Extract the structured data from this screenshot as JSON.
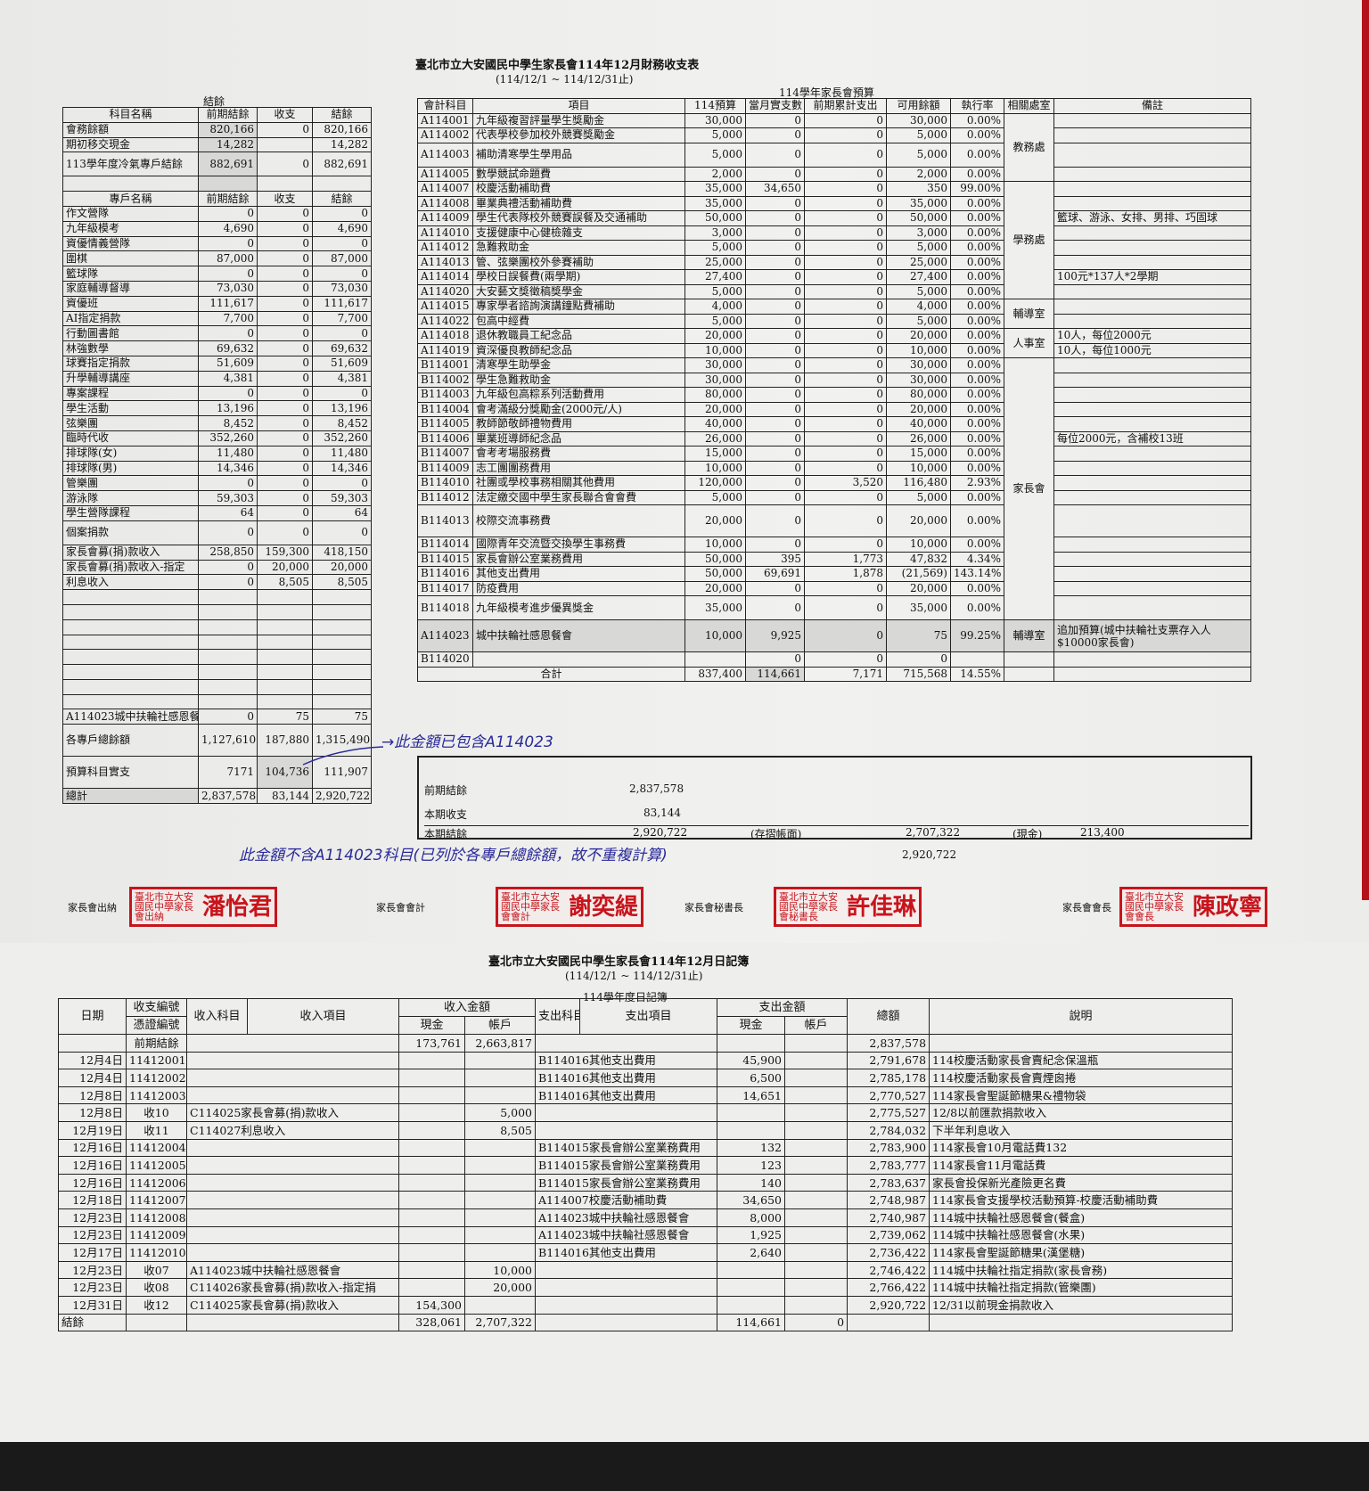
{
  "report": {
    "title": "臺北市立大安國民中學生家長會114年12月財務收支表",
    "period": "(114/12/1 ~ 114/12/31止)"
  },
  "left": {
    "caption": "結餘",
    "header1": [
      "科目名稱",
      "前期結餘",
      "收支",
      "結餘"
    ],
    "rows1": [
      [
        "會務餘額",
        "820,166",
        "0",
        "820,166"
      ],
      [
        "期初移交現金",
        "14,282",
        "",
        "14,282"
      ],
      [
        "113學年度冷氣專戶結餘",
        "882,691",
        "0",
        "882,691"
      ],
      [
        "",
        "",
        "",
        ""
      ]
    ],
    "header2": [
      "專戶名稱",
      "前期結餘",
      "收支",
      "結餘"
    ],
    "rows2": [
      [
        "作文營隊",
        "0",
        "0",
        "0"
      ],
      [
        "九年級模考",
        "4,690",
        "0",
        "4,690"
      ],
      [
        "資優情義營隊",
        "0",
        "0",
        "0"
      ],
      [
        "圍棋",
        "87,000",
        "0",
        "87,000"
      ],
      [
        "籃球隊",
        "0",
        "0",
        "0"
      ],
      [
        "家庭輔導督導",
        "73,030",
        "0",
        "73,030"
      ],
      [
        "資優班",
        "111,617",
        "0",
        "111,617"
      ],
      [
        "AI指定捐款",
        "7,700",
        "0",
        "7,700"
      ],
      [
        "行動圖書館",
        "0",
        "0",
        "0"
      ],
      [
        "林強數學",
        "69,632",
        "0",
        "69,632"
      ],
      [
        "球賽指定捐款",
        "51,609",
        "0",
        "51,609"
      ],
      [
        "升學輔導講座",
        "4,381",
        "0",
        "4,381"
      ],
      [
        "專案課程",
        "0",
        "0",
        "0"
      ],
      [
        "學生活動",
        "13,196",
        "0",
        "13,196"
      ],
      [
        "弦樂團",
        "8,452",
        "0",
        "8,452"
      ],
      [
        "臨時代收",
        "352,260",
        "0",
        "352,260"
      ],
      [
        "排球隊(女)",
        "11,480",
        "0",
        "11,480"
      ],
      [
        "排球隊(男)",
        "14,346",
        "0",
        "14,346"
      ],
      [
        "管樂團",
        "0",
        "0",
        "0"
      ],
      [
        "游泳隊",
        "59,303",
        "0",
        "59,303"
      ],
      [
        "學生營隊課程",
        "64",
        "0",
        "64"
      ],
      [
        "個案捐款",
        "0",
        "0",
        "0"
      ],
      [
        "家長會募(捐)款收入",
        "258,850",
        "159,300",
        "418,150"
      ],
      [
        "家長會募(捐)款收入-指定",
        "0",
        "20,000",
        "20,000"
      ],
      [
        "利息收入",
        "0",
        "8,505",
        "8,505"
      ],
      [
        "",
        "",
        "",
        ""
      ],
      [
        "",
        "",
        "",
        ""
      ],
      [
        "",
        "",
        "",
        ""
      ],
      [
        "",
        "",
        "",
        ""
      ],
      [
        "",
        "",
        "",
        ""
      ],
      [
        "",
        "",
        "",
        ""
      ],
      [
        "",
        "",
        "",
        ""
      ],
      [
        "",
        "",
        "",
        ""
      ],
      [
        "A114023城中扶輪社感恩餐",
        "0",
        "75",
        "75"
      ]
    ],
    "totals": [
      [
        "各專戶總餘額",
        "1,127,610",
        "187,880",
        "1,315,490"
      ],
      [
        "預算科目實支",
        "7171",
        "104,736",
        "111,907"
      ],
      [
        "總計",
        "2,837,578",
        "83,144",
        "2,920,722"
      ]
    ]
  },
  "budget": {
    "caption": "114學年家長會預算",
    "headers": [
      "會計科目",
      "項目",
      "114預算",
      "當月實支數",
      "前期累計支出",
      "可用餘額",
      "執行率",
      "相關處室",
      "備註"
    ],
    "rows": [
      {
        "code": "A114001",
        "item": "九年級複習評量學生獎勵金",
        "budget": "30,000",
        "month": "0",
        "prior": "0",
        "avail": "30,000",
        "rate": "0.00%",
        "dept": "教務處",
        "note": ""
      },
      {
        "code": "A114002",
        "item": "代表學校參加校外競賽獎勵金",
        "budget": "5,000",
        "month": "0",
        "prior": "0",
        "avail": "5,000",
        "rate": "0.00%",
        "dept": "教務處",
        "note": ""
      },
      {
        "code": "A114003",
        "item": "補助清寒學生學用品",
        "budget": "5,000",
        "month": "0",
        "prior": "0",
        "avail": "5,000",
        "rate": "0.00%",
        "dept": "教務處",
        "note": ""
      },
      {
        "code": "A114005",
        "item": "數學競試命題費",
        "budget": "2,000",
        "month": "0",
        "prior": "0",
        "avail": "2,000",
        "rate": "0.00%",
        "dept": "教務處",
        "note": ""
      },
      {
        "code": "A114007",
        "item": "校慶活動補助費",
        "budget": "35,000",
        "month": "34,650",
        "prior": "0",
        "avail": "350",
        "rate": "99.00%",
        "dept": "學務處",
        "note": ""
      },
      {
        "code": "A114008",
        "item": "畢業典禮活動補助費",
        "budget": "35,000",
        "month": "0",
        "prior": "0",
        "avail": "35,000",
        "rate": "0.00%",
        "dept": "學務處",
        "note": ""
      },
      {
        "code": "A114009",
        "item": "學生代表隊校外競賽誤餐及交通補助",
        "budget": "50,000",
        "month": "0",
        "prior": "0",
        "avail": "50,000",
        "rate": "0.00%",
        "dept": "學務處",
        "note": "籃球、游泳、女排、男排、巧固球"
      },
      {
        "code": "A114010",
        "item": "支援健康中心健檢雜支",
        "budget": "3,000",
        "month": "0",
        "prior": "0",
        "avail": "3,000",
        "rate": "0.00%",
        "dept": "學務處",
        "note": ""
      },
      {
        "code": "A114012",
        "item": "急難救助金",
        "budget": "5,000",
        "month": "0",
        "prior": "0",
        "avail": "5,000",
        "rate": "0.00%",
        "dept": "學務處",
        "note": ""
      },
      {
        "code": "A114013",
        "item": "管、弦樂團校外參賽補助",
        "budget": "25,000",
        "month": "0",
        "prior": "0",
        "avail": "25,000",
        "rate": "0.00%",
        "dept": "學務處",
        "note": ""
      },
      {
        "code": "A114014",
        "item": "學校日誤餐費(兩學期)",
        "budget": "27,400",
        "month": "0",
        "prior": "0",
        "avail": "27,400",
        "rate": "0.00%",
        "dept": "學務處",
        "note": "100元*137人*2學期"
      },
      {
        "code": "A114020",
        "item": "大安藝文獎徵稿獎學金",
        "budget": "5,000",
        "month": "0",
        "prior": "0",
        "avail": "5,000",
        "rate": "0.00%",
        "dept": "學務處",
        "note": ""
      },
      {
        "code": "A114015",
        "item": "專家學者諮詢演講鐘點費補助",
        "budget": "4,000",
        "month": "0",
        "prior": "0",
        "avail": "4,000",
        "rate": "0.00%",
        "dept": "輔導室",
        "note": ""
      },
      {
        "code": "A114022",
        "item": "包高中經費",
        "budget": "5,000",
        "month": "0",
        "prior": "0",
        "avail": "5,000",
        "rate": "0.00%",
        "dept": "輔導室",
        "note": ""
      },
      {
        "code": "A114018",
        "item": "退休教職員工紀念品",
        "budget": "20,000",
        "month": "0",
        "prior": "0",
        "avail": "20,000",
        "rate": "0.00%",
        "dept": "人事室",
        "note": "10人，每位2000元"
      },
      {
        "code": "A114019",
        "item": "資深優良教師紀念品",
        "budget": "10,000",
        "month": "0",
        "prior": "0",
        "avail": "10,000",
        "rate": "0.00%",
        "dept": "人事室",
        "note": "10人，每位1000元"
      },
      {
        "code": "B114001",
        "item": "清寒學生助學金",
        "budget": "30,000",
        "month": "0",
        "prior": "0",
        "avail": "30,000",
        "rate": "0.00%",
        "dept": "家長會",
        "note": ""
      },
      {
        "code": "B114002",
        "item": "學生急難救助金",
        "budget": "30,000",
        "month": "0",
        "prior": "0",
        "avail": "30,000",
        "rate": "0.00%",
        "dept": "家長會",
        "note": ""
      },
      {
        "code": "B114003",
        "item": "九年級包高粽系列活動費用",
        "budget": "80,000",
        "month": "0",
        "prior": "0",
        "avail": "80,000",
        "rate": "0.00%",
        "dept": "家長會",
        "note": ""
      },
      {
        "code": "B114004",
        "item": "會考滿級分獎勵金(2000元/人)",
        "budget": "20,000",
        "month": "0",
        "prior": "0",
        "avail": "20,000",
        "rate": "0.00%",
        "dept": "家長會",
        "note": ""
      },
      {
        "code": "B114005",
        "item": "教師節敬師禮物費用",
        "budget": "40,000",
        "month": "0",
        "prior": "0",
        "avail": "40,000",
        "rate": "0.00%",
        "dept": "家長會",
        "note": ""
      },
      {
        "code": "B114006",
        "item": "畢業班導師紀念品",
        "budget": "26,000",
        "month": "0",
        "prior": "0",
        "avail": "26,000",
        "rate": "0.00%",
        "dept": "家長會",
        "note": "每位2000元，含補校13班"
      },
      {
        "code": "B114007",
        "item": "會考考場服務費",
        "budget": "15,000",
        "month": "0",
        "prior": "0",
        "avail": "15,000",
        "rate": "0.00%",
        "dept": "家長會",
        "note": ""
      },
      {
        "code": "B114009",
        "item": "志工團團務費用",
        "budget": "10,000",
        "month": "0",
        "prior": "0",
        "avail": "10,000",
        "rate": "0.00%",
        "dept": "家長會",
        "note": ""
      },
      {
        "code": "B114010",
        "item": "社團或學校事務相關其他費用",
        "budget": "120,000",
        "month": "0",
        "prior": "3,520",
        "avail": "116,480",
        "rate": "2.93%",
        "dept": "家長會",
        "note": ""
      },
      {
        "code": "B114012",
        "item": "法定繳交國中學生家長聯合會會費",
        "budget": "5,000",
        "month": "0",
        "prior": "0",
        "avail": "5,000",
        "rate": "0.00%",
        "dept": "家長會",
        "note": ""
      },
      {
        "code": "B114013",
        "item": "校際交流事務費",
        "budget": "20,000",
        "month": "0",
        "prior": "0",
        "avail": "20,000",
        "rate": "0.00%",
        "dept": "家長會",
        "note": ""
      },
      {
        "code": "B114014",
        "item": "國際青年交流暨交換學生事務費",
        "budget": "10,000",
        "month": "0",
        "prior": "0",
        "avail": "10,000",
        "rate": "0.00%",
        "dept": "家長會",
        "note": ""
      },
      {
        "code": "B114015",
        "item": "家長會辦公室業務費用",
        "budget": "50,000",
        "month": "395",
        "prior": "1,773",
        "avail": "47,832",
        "rate": "4.34%",
        "dept": "家長會",
        "note": ""
      },
      {
        "code": "B114016",
        "item": "其他支出費用",
        "budget": "50,000",
        "month": "69,691",
        "prior": "1,878",
        "avail": "(21,569)",
        "rate": "143.14%",
        "dept": "家長會",
        "note": ""
      },
      {
        "code": "B114017",
        "item": "防疫費用",
        "budget": "20,000",
        "month": "0",
        "prior": "0",
        "avail": "20,000",
        "rate": "0.00%",
        "dept": "家長會",
        "note": ""
      },
      {
        "code": "B114018",
        "item": "九年級模考進步優異獎金",
        "budget": "35,000",
        "month": "0",
        "prior": "0",
        "avail": "35,000",
        "rate": "0.00%",
        "dept": "家長會",
        "note": ""
      },
      {
        "code": "A114023",
        "item": "城中扶輪社感恩餐會",
        "budget": "10,000",
        "month": "9,925",
        "prior": "0",
        "avail": "75",
        "rate": "99.25%",
        "dept": "輔導室",
        "note": "追加預算(城中扶輪社支票存入人$10000家長會)"
      },
      {
        "code": "B114020",
        "item": "",
        "budget": "",
        "month": "0",
        "prior": "0",
        "avail": "0",
        "rate": "",
        "dept": "",
        "note": ""
      }
    ],
    "total": {
      "code": "合計",
      "budget": "837,400",
      "month": "114,661",
      "prior": "7,171",
      "avail": "715,568",
      "rate": "14.55%"
    }
  },
  "summary": {
    "prev_label": "前期結餘",
    "prev_value": "2,837,578",
    "period_label": "本期收支",
    "period_value": "83,144",
    "end_label": "本期結餘",
    "end_value": "2,920,722",
    "bankbook_label": "(存摺帳面)",
    "bankbook_value": "2,707,322",
    "cash_label": "(現金)",
    "cash_value": "213,400",
    "grand_value": "2,920,722"
  },
  "annotations": {
    "note1": "→此金額已包含A114023",
    "note2": "此金額不含A114023科目(已列於各專戶總餘額，故不重複計算)"
  },
  "signatures": [
    {
      "role": "家長會出納",
      "stamp_org": "臺北市立大安國民中學家長會出納",
      "stamp_name": "潘怡君"
    },
    {
      "role": "家長會會計",
      "stamp_org": "臺北市立大安國民中學家長會會計",
      "stamp_name": "謝奕緹"
    },
    {
      "role": "家長會秘書長",
      "stamp_org": "臺北市立大安國民中學家長會秘書長",
      "stamp_name": "許佳琳"
    },
    {
      "role": "家長會會長",
      "stamp_org": "臺北市立大安國民中學家長會會長",
      "stamp_name": "陳政寧"
    }
  ],
  "ledger": {
    "title": "臺北市立大安國民中學生家長會114年12月日記簿",
    "period": "(114/12/1 ~ 114/12/31止)",
    "caption": "114學年度日記簿",
    "headers": {
      "date": "日期",
      "no": "收支編號",
      "voucher": "憑證編號",
      "in_subject": "收入科目",
      "in_item": "收入項目",
      "in_amount": "收入金額",
      "cash": "現金",
      "account": "帳戶",
      "out_subject": "支出科目",
      "out_item": "支出項目",
      "out_amount": "支出金額",
      "total": "總額",
      "note": "說明"
    },
    "rows": [
      [
        "",
        "前期結餘",
        "",
        "173,761",
        "2,663,817",
        "",
        "",
        "",
        "2,837,578",
        ""
      ],
      [
        "12月4日",
        "11412001",
        "",
        "",
        "",
        "B114016其他支出費用",
        "45,900",
        "",
        "2,791,678",
        "114校慶活動家長會賣紀念保溫瓶"
      ],
      [
        "12月4日",
        "11412002",
        "",
        "",
        "",
        "B114016其他支出費用",
        "6,500",
        "",
        "2,785,178",
        "114校慶活動家長會賣煙囪捲"
      ],
      [
        "12月8日",
        "11412003",
        "",
        "",
        "",
        "B114016其他支出費用",
        "14,651",
        "",
        "2,770,527",
        "114家長會聖誕節糖果&禮物袋"
      ],
      [
        "12月8日",
        "收10",
        "C114025家長會募(捐)款收入",
        "",
        "5,000",
        "",
        "",
        "",
        "2,775,527",
        "12/8以前匯款捐款收入"
      ],
      [
        "12月19日",
        "收11",
        "C114027利息收入",
        "",
        "8,505",
        "",
        "",
        "",
        "2,784,032",
        "下半年利息收入"
      ],
      [
        "12月16日",
        "11412004",
        "",
        "",
        "",
        "B114015家長會辦公室業務費用",
        "132",
        "",
        "2,783,900",
        "114家長會10月電話費132"
      ],
      [
        "12月16日",
        "11412005",
        "",
        "",
        "",
        "B114015家長會辦公室業務費用",
        "123",
        "",
        "2,783,777",
        "114家長會11月電話費"
      ],
      [
        "12月16日",
        "11412006",
        "",
        "",
        "",
        "B114015家長會辦公室業務費用",
        "140",
        "",
        "2,783,637",
        "家長會投保新光產險更名費"
      ],
      [
        "12月18日",
        "11412007",
        "",
        "",
        "",
        "A114007校慶活動補助費",
        "34,650",
        "",
        "2,748,987",
        "114家長會支援學校活動預算-校慶活動補助費"
      ],
      [
        "12月23日",
        "11412008",
        "",
        "",
        "",
        "A114023城中扶輪社感恩餐會",
        "8,000",
        "",
        "2,740,987",
        "114城中扶輪社感恩餐會(餐盒)"
      ],
      [
        "12月23日",
        "11412009",
        "",
        "",
        "",
        "A114023城中扶輪社感恩餐會",
        "1,925",
        "",
        "2,739,062",
        "114城中扶輪社感恩餐會(水果)"
      ],
      [
        "12月17日",
        "11412010",
        "",
        "",
        "",
        "B114016其他支出費用",
        "2,640",
        "",
        "2,736,422",
        "114家長會聖誕節糖果(漢堡糖)"
      ],
      [
        "12月23日",
        "收07",
        "A114023城中扶輪社感恩餐會",
        "",
        "10,000",
        "",
        "",
        "",
        "2,746,422",
        "114城中扶輪社指定捐款(家長會務)"
      ],
      [
        "12月23日",
        "收08",
        "C114026家長會募(捐)款收入-指定捐",
        "",
        "20,000",
        "",
        "",
        "",
        "2,766,422",
        "114城中扶輪社指定捐款(管樂團)"
      ],
      [
        "12月31日",
        "收12",
        "C114025家長會募(捐)款收入",
        "154,300",
        "",
        "",
        "",
        "",
        "2,920,722",
        "12/31以前現金捐款收入"
      ],
      [
        "結餘",
        "",
        "",
        "328,061",
        "2,707,322",
        "",
        "114,661",
        "0",
        "",
        ""
      ]
    ]
  }
}
